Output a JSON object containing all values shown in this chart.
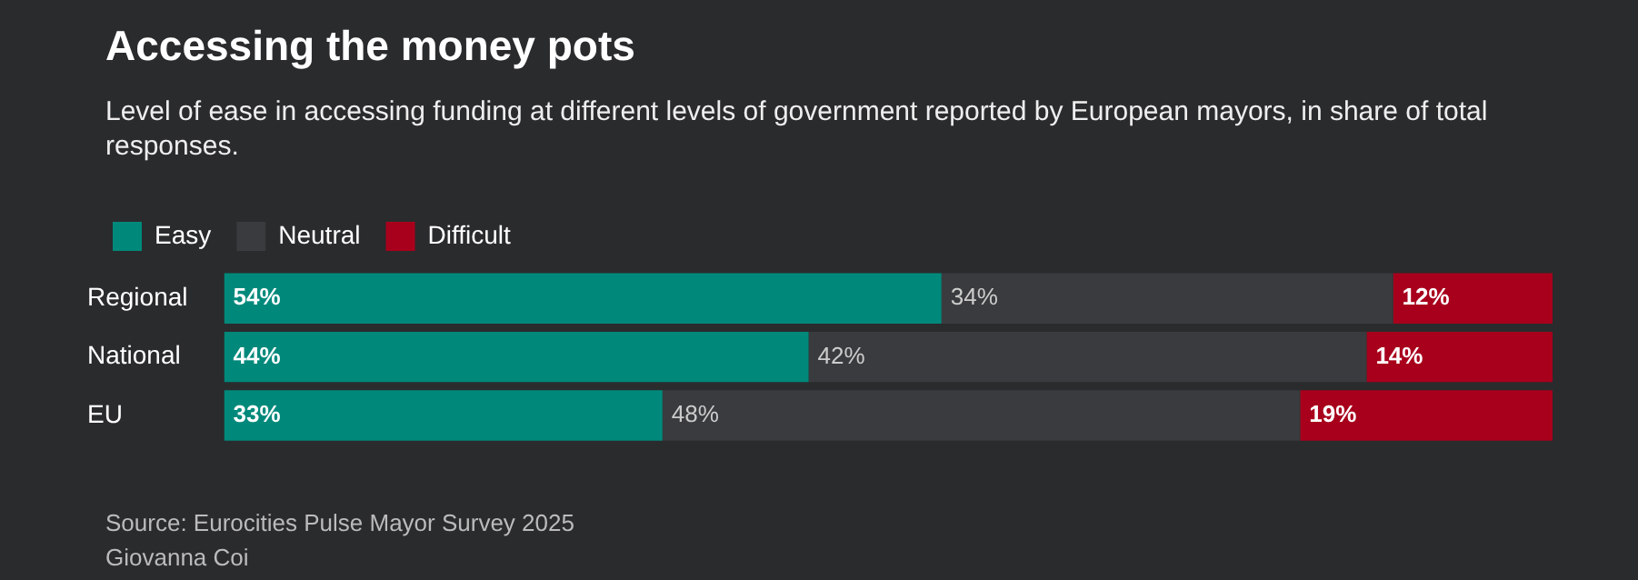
{
  "chart_data": {
    "type": "bar",
    "orientation": "horizontal",
    "stacked": true,
    "title": "Accessing the money pots",
    "subtitle": "Level of ease in accessing funding at different levels of government reported by European mayors, in share of total responses.",
    "categories": [
      "Regional",
      "National",
      "EU"
    ],
    "series": [
      {
        "name": "Easy",
        "color": "#00897b",
        "values": [
          54,
          44,
          33
        ],
        "value_labels": [
          "54%",
          "44%",
          "33%"
        ]
      },
      {
        "name": "Neutral",
        "color": "#393b3e",
        "values": [
          34,
          42,
          48
        ],
        "value_labels": [
          "34%",
          "42%",
          "48%"
        ]
      },
      {
        "name": "Difficult",
        "color": "#a8001c",
        "values": [
          12,
          14,
          19
        ],
        "value_labels": [
          "12%",
          "14%",
          "19%"
        ]
      }
    ],
    "legend": "top left",
    "tick_labels": "y",
    "annotations": [
      "Source: Eurocities Pulse Mayor Survey 2025",
      "Giovanna Coi"
    ]
  }
}
